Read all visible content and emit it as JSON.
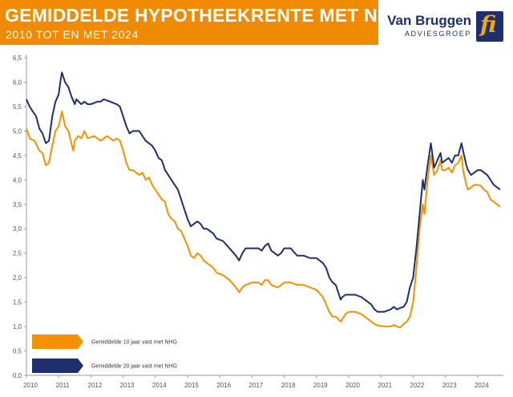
{
  "header": {
    "title": "GEMIDDELDE HYPOTHEEKRENTE MET NHG",
    "subtitle": "2010 TOT EN MET 2024"
  },
  "brand": {
    "name": "Van Bruggen",
    "tagline": "ADVIESGROEP",
    "logo_text": "fi"
  },
  "colors": {
    "banner": "#f08a00",
    "brand": "#1f2e6f",
    "series_10": "#f39200",
    "series_20": "#1f2e6f"
  },
  "chart_data": {
    "type": "line",
    "title": "GEMIDDELDE HYPOTHEEKRENTE MET NHG",
    "subtitle": "2010 TOT EN MET 2024",
    "xlim": [
      2010,
      2024.8
    ],
    "ylim": [
      0,
      6.5
    ],
    "x_ticks": [
      "2010",
      "2011",
      "2012",
      "2013",
      "2014",
      "2015",
      "2016",
      "2017",
      "2018",
      "2019",
      "2020",
      "2021",
      "2022",
      "2023",
      "2024"
    ],
    "y_ticks": [
      "0,0",
      "0,5",
      "1,0",
      "1,5",
      "2,0",
      "2,5",
      "3,0",
      "3,5",
      "4,0",
      "4,5",
      "5,0",
      "5,5",
      "6,0",
      "6,5"
    ],
    "grid": false,
    "legend_position": "bottom-left",
    "series": [
      {
        "name": "Gemiddelde 10 jaar vast met NHG",
        "points": [
          [
            2010.0,
            5.05
          ],
          [
            2010.1,
            4.85
          ],
          [
            2010.25,
            4.8
          ],
          [
            2010.4,
            4.6
          ],
          [
            2010.5,
            4.55
          ],
          [
            2010.6,
            4.3
          ],
          [
            2010.7,
            4.35
          ],
          [
            2010.8,
            4.7
          ],
          [
            2010.9,
            5.0
          ],
          [
            2011.0,
            5.1
          ],
          [
            2011.05,
            5.25
          ],
          [
            2011.1,
            5.4
          ],
          [
            2011.2,
            5.1
          ],
          [
            2011.3,
            5.0
          ],
          [
            2011.45,
            4.6
          ],
          [
            2011.5,
            4.8
          ],
          [
            2011.6,
            4.9
          ],
          [
            2011.7,
            4.85
          ],
          [
            2011.8,
            5.0
          ],
          [
            2011.9,
            4.85
          ],
          [
            2012.1,
            4.9
          ],
          [
            2012.3,
            4.8
          ],
          [
            2012.5,
            4.9
          ],
          [
            2012.7,
            4.8
          ],
          [
            2012.8,
            4.85
          ],
          [
            2012.9,
            4.8
          ],
          [
            2013.0,
            4.6
          ],
          [
            2013.1,
            4.35
          ],
          [
            2013.2,
            4.2
          ],
          [
            2013.3,
            4.2
          ],
          [
            2013.5,
            4.1
          ],
          [
            2013.6,
            4.15
          ],
          [
            2013.7,
            4.0
          ],
          [
            2013.8,
            4.05
          ],
          [
            2013.9,
            3.9
          ],
          [
            2014.0,
            3.8
          ],
          [
            2014.1,
            3.7
          ],
          [
            2014.2,
            3.6
          ],
          [
            2014.3,
            3.55
          ],
          [
            2014.4,
            3.3
          ],
          [
            2014.5,
            3.2
          ],
          [
            2014.6,
            3.15
          ],
          [
            2014.7,
            3.0
          ],
          [
            2014.8,
            2.95
          ],
          [
            2014.9,
            2.8
          ],
          [
            2015.0,
            2.65
          ],
          [
            2015.1,
            2.45
          ],
          [
            2015.2,
            2.4
          ],
          [
            2015.3,
            2.5
          ],
          [
            2015.4,
            2.45
          ],
          [
            2015.5,
            2.35
          ],
          [
            2015.6,
            2.3
          ],
          [
            2015.8,
            2.2
          ],
          [
            2015.9,
            2.1
          ],
          [
            2016.1,
            2.05
          ],
          [
            2016.3,
            1.95
          ],
          [
            2016.5,
            1.8
          ],
          [
            2016.6,
            1.7
          ],
          [
            2016.7,
            1.8
          ],
          [
            2016.8,
            1.85
          ],
          [
            2017.0,
            1.9
          ],
          [
            2017.2,
            1.9
          ],
          [
            2017.3,
            1.85
          ],
          [
            2017.4,
            1.95
          ],
          [
            2017.5,
            1.95
          ],
          [
            2017.6,
            1.85
          ],
          [
            2017.7,
            1.82
          ],
          [
            2017.8,
            1.8
          ],
          [
            2017.9,
            1.85
          ],
          [
            2018.0,
            1.9
          ],
          [
            2018.2,
            1.9
          ],
          [
            2018.4,
            1.85
          ],
          [
            2018.6,
            1.85
          ],
          [
            2018.8,
            1.8
          ],
          [
            2019.0,
            1.75
          ],
          [
            2019.2,
            1.6
          ],
          [
            2019.3,
            1.45
          ],
          [
            2019.4,
            1.3
          ],
          [
            2019.5,
            1.2
          ],
          [
            2019.6,
            1.2
          ],
          [
            2019.75,
            1.1
          ],
          [
            2019.8,
            1.15
          ],
          [
            2019.9,
            1.25
          ],
          [
            2020.0,
            1.3
          ],
          [
            2020.2,
            1.3
          ],
          [
            2020.4,
            1.25
          ],
          [
            2020.5,
            1.2
          ],
          [
            2020.6,
            1.15
          ],
          [
            2020.7,
            1.1
          ],
          [
            2020.8,
            1.05
          ],
          [
            2020.9,
            1.02
          ],
          [
            2021.1,
            1.0
          ],
          [
            2021.3,
            1.0
          ],
          [
            2021.4,
            1.03
          ],
          [
            2021.5,
            1.0
          ],
          [
            2021.6,
            0.98
          ],
          [
            2021.7,
            1.05
          ],
          [
            2021.8,
            1.1
          ],
          [
            2021.9,
            1.2
          ],
          [
            2022.0,
            1.5
          ],
          [
            2022.1,
            2.2
          ],
          [
            2022.2,
            3.0
          ],
          [
            2022.3,
            3.5
          ],
          [
            2022.35,
            3.3
          ],
          [
            2022.45,
            4.0
          ],
          [
            2022.55,
            4.5
          ],
          [
            2022.6,
            4.3
          ],
          [
            2022.65,
            4.1
          ],
          [
            2022.75,
            4.2
          ],
          [
            2022.85,
            4.4
          ],
          [
            2022.9,
            4.2
          ],
          [
            2023.0,
            4.2
          ],
          [
            2023.1,
            4.25
          ],
          [
            2023.2,
            4.15
          ],
          [
            2023.3,
            4.3
          ],
          [
            2023.4,
            4.35
          ],
          [
            2023.5,
            4.5
          ],
          [
            2023.55,
            4.2
          ],
          [
            2023.65,
            3.9
          ],
          [
            2023.7,
            3.8
          ],
          [
            2023.8,
            3.85
          ],
          [
            2023.9,
            3.9
          ],
          [
            2024.0,
            3.9
          ],
          [
            2024.1,
            3.88
          ],
          [
            2024.2,
            3.8
          ],
          [
            2024.3,
            3.75
          ],
          [
            2024.4,
            3.6
          ],
          [
            2024.5,
            3.55
          ],
          [
            2024.6,
            3.5
          ],
          [
            2024.7,
            3.45
          ]
        ]
      },
      {
        "name": "Gemiddelde 20 jaar vast met NHG",
        "points": [
          [
            2010.0,
            5.65
          ],
          [
            2010.1,
            5.5
          ],
          [
            2010.2,
            5.4
          ],
          [
            2010.3,
            5.3
          ],
          [
            2010.4,
            5.05
          ],
          [
            2010.5,
            4.95
          ],
          [
            2010.6,
            4.75
          ],
          [
            2010.7,
            4.8
          ],
          [
            2010.8,
            5.3
          ],
          [
            2010.9,
            5.6
          ],
          [
            2011.0,
            5.75
          ],
          [
            2011.05,
            6.0
          ],
          [
            2011.1,
            6.2
          ],
          [
            2011.2,
            6.0
          ],
          [
            2011.3,
            5.9
          ],
          [
            2011.4,
            5.7
          ],
          [
            2011.5,
            5.55
          ],
          [
            2011.55,
            5.65
          ],
          [
            2011.7,
            5.55
          ],
          [
            2011.8,
            5.6
          ],
          [
            2011.9,
            5.55
          ],
          [
            2012.0,
            5.55
          ],
          [
            2012.2,
            5.6
          ],
          [
            2012.3,
            5.6
          ],
          [
            2012.4,
            5.65
          ],
          [
            2012.6,
            5.6
          ],
          [
            2012.8,
            5.55
          ],
          [
            2012.9,
            5.5
          ],
          [
            2013.0,
            5.3
          ],
          [
            2013.1,
            5.1
          ],
          [
            2013.2,
            4.95
          ],
          [
            2013.3,
            5.0
          ],
          [
            2013.5,
            5.0
          ],
          [
            2013.6,
            4.9
          ],
          [
            2013.7,
            4.8
          ],
          [
            2013.9,
            4.7
          ],
          [
            2014.0,
            4.6
          ],
          [
            2014.1,
            4.45
          ],
          [
            2014.2,
            4.4
          ],
          [
            2014.3,
            4.2
          ],
          [
            2014.5,
            4.0
          ],
          [
            2014.6,
            3.9
          ],
          [
            2014.7,
            3.8
          ],
          [
            2014.8,
            3.6
          ],
          [
            2014.9,
            3.4
          ],
          [
            2015.0,
            3.2
          ],
          [
            2015.1,
            3.05
          ],
          [
            2015.2,
            3.1
          ],
          [
            2015.3,
            3.15
          ],
          [
            2015.4,
            3.1
          ],
          [
            2015.5,
            3.0
          ],
          [
            2015.6,
            3.0
          ],
          [
            2015.8,
            2.9
          ],
          [
            2015.9,
            2.8
          ],
          [
            2016.1,
            2.75
          ],
          [
            2016.3,
            2.6
          ],
          [
            2016.5,
            2.45
          ],
          [
            2016.6,
            2.35
          ],
          [
            2016.7,
            2.5
          ],
          [
            2016.8,
            2.6
          ],
          [
            2017.0,
            2.6
          ],
          [
            2017.2,
            2.6
          ],
          [
            2017.3,
            2.55
          ],
          [
            2017.4,
            2.65
          ],
          [
            2017.5,
            2.7
          ],
          [
            2017.6,
            2.55
          ],
          [
            2017.7,
            2.5
          ],
          [
            2017.8,
            2.45
          ],
          [
            2017.9,
            2.5
          ],
          [
            2018.0,
            2.6
          ],
          [
            2018.2,
            2.6
          ],
          [
            2018.4,
            2.45
          ],
          [
            2018.6,
            2.45
          ],
          [
            2018.8,
            2.4
          ],
          [
            2019.0,
            2.4
          ],
          [
            2019.2,
            2.3
          ],
          [
            2019.3,
            2.2
          ],
          [
            2019.4,
            2.0
          ],
          [
            2019.5,
            1.9
          ],
          [
            2019.6,
            1.85
          ],
          [
            2019.75,
            1.55
          ],
          [
            2019.8,
            1.6
          ],
          [
            2019.9,
            1.65
          ],
          [
            2020.0,
            1.65
          ],
          [
            2020.2,
            1.65
          ],
          [
            2020.4,
            1.6
          ],
          [
            2020.5,
            1.55
          ],
          [
            2020.6,
            1.5
          ],
          [
            2020.7,
            1.45
          ],
          [
            2020.8,
            1.35
          ],
          [
            2020.9,
            1.3
          ],
          [
            2021.1,
            1.3
          ],
          [
            2021.3,
            1.35
          ],
          [
            2021.4,
            1.4
          ],
          [
            2021.5,
            1.35
          ],
          [
            2021.6,
            1.38
          ],
          [
            2021.7,
            1.4
          ],
          [
            2021.8,
            1.5
          ],
          [
            2021.9,
            1.8
          ],
          [
            2022.0,
            2.0
          ],
          [
            2022.1,
            2.6
          ],
          [
            2022.2,
            3.3
          ],
          [
            2022.3,
            4.0
          ],
          [
            2022.35,
            3.8
          ],
          [
            2022.45,
            4.3
          ],
          [
            2022.55,
            4.75
          ],
          [
            2022.6,
            4.5
          ],
          [
            2022.65,
            4.25
          ],
          [
            2022.75,
            4.4
          ],
          [
            2022.85,
            4.55
          ],
          [
            2022.9,
            4.35
          ],
          [
            2023.0,
            4.4
          ],
          [
            2023.1,
            4.45
          ],
          [
            2023.2,
            4.35
          ],
          [
            2023.3,
            4.5
          ],
          [
            2023.4,
            4.5
          ],
          [
            2023.5,
            4.75
          ],
          [
            2023.55,
            4.6
          ],
          [
            2023.65,
            4.3
          ],
          [
            2023.7,
            4.2
          ],
          [
            2023.8,
            4.1
          ],
          [
            2023.9,
            4.15
          ],
          [
            2024.0,
            4.2
          ],
          [
            2024.1,
            4.2
          ],
          [
            2024.2,
            4.15
          ],
          [
            2024.3,
            4.1
          ],
          [
            2024.4,
            4.0
          ],
          [
            2024.5,
            3.9
          ],
          [
            2024.6,
            3.85
          ],
          [
            2024.7,
            3.8
          ]
        ]
      }
    ]
  }
}
